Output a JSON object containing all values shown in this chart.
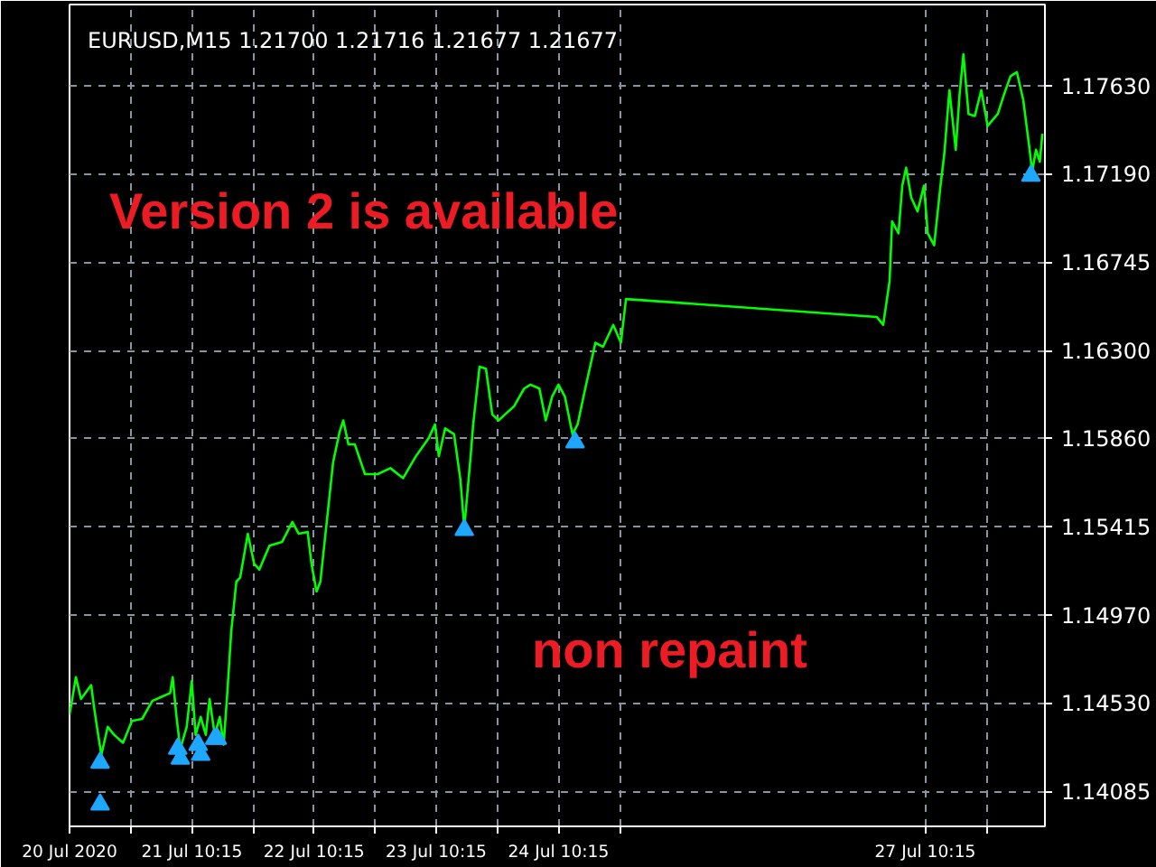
{
  "chart_data": {
    "type": "line",
    "title": "EURUSD,M15  1.21700 1.21716 1.21677 1.21677",
    "annotations": [
      "Version 2 is available",
      "non repaint"
    ],
    "xlim": [
      "2020-07-20T10:15",
      "2020-07-28T09:45"
    ],
    "ylim": [
      1.1391,
      1.1804
    ],
    "xticks": [
      {
        "value": "2020-07-20T10:15",
        "label": "20 Jul 2020"
      },
      {
        "value": "2020-07-20T22:15",
        "label": null
      },
      {
        "value": "2020-07-21T10:15",
        "label": "21 Jul 10:15"
      },
      {
        "value": "2020-07-21T22:15",
        "label": null
      },
      {
        "value": "2020-07-22T10:15",
        "label": "22 Jul 10:15"
      },
      {
        "value": "2020-07-22T22:15",
        "label": null
      },
      {
        "value": "2020-07-23T10:15",
        "label": "23 Jul 10:15"
      },
      {
        "value": "2020-07-23T22:15",
        "label": null
      },
      {
        "value": "2020-07-24T10:15",
        "label": "24 Jul 10:15"
      },
      {
        "value": "2020-07-24T22:15",
        "label": null
      },
      {
        "value": "2020-07-27T10:15",
        "label": "27 Jul 10:15"
      },
      {
        "value": "2020-07-27T22:15",
        "label": null
      }
    ],
    "yticks": [
      {
        "value": 1.14085,
        "label": "1.14085"
      },
      {
        "value": 1.1453,
        "label": "1.14530"
      },
      {
        "value": 1.1497,
        "label": "1.14970"
      },
      {
        "value": 1.15415,
        "label": "1.15415"
      },
      {
        "value": 1.1586,
        "label": "1.15860"
      },
      {
        "value": 1.163,
        "label": "1.16300"
      },
      {
        "value": 1.16745,
        "label": "1.16745"
      },
      {
        "value": 1.1719,
        "label": "1.17190"
      },
      {
        "value": 1.1763,
        "label": "1.17630"
      }
    ],
    "grid": true,
    "series": [
      {
        "color": "#00ff00",
        "x": [
          "2020-07-20T10:15",
          "2020-07-20T11:30",
          "2020-07-20T12:30",
          "2020-07-20T14:30",
          "2020-07-20T15:00",
          "2020-07-20T15:45",
          "2020-07-20T16:30",
          "2020-07-20T17:45",
          "2020-07-20T19:00",
          "2020-07-20T20:45",
          "2020-07-20T22:30",
          "2020-07-21T00:30",
          "2020-07-21T02:30",
          "2020-07-21T04:15",
          "2020-07-21T06:00",
          "2020-07-21T06:30",
          "2020-07-21T07:15",
          "2020-07-21T08:00",
          "2020-07-21T09:15",
          "2020-07-21T10:15",
          "2020-07-21T11:00",
          "2020-07-21T12:00",
          "2020-07-21T13:00",
          "2020-07-21T13:45",
          "2020-07-21T14:45",
          "2020-07-21T15:45",
          "2020-07-21T16:30",
          "2020-07-21T17:15",
          "2020-07-21T18:00",
          "2020-07-21T19:00",
          "2020-07-21T19:45",
          "2020-07-21T21:15",
          "2020-07-21T22:30",
          "2020-07-21T23:30",
          "2020-07-22T01:30",
          "2020-07-22T04:00",
          "2020-07-22T06:00",
          "2020-07-22T07:15",
          "2020-07-22T09:00",
          "2020-07-22T09:45",
          "2020-07-22T10:45",
          "2020-07-22T11:30",
          "2020-07-22T12:30",
          "2020-07-22T13:15",
          "2020-07-22T14:00",
          "2020-07-22T15:15",
          "2020-07-22T16:00",
          "2020-07-22T17:00",
          "2020-07-22T18:15",
          "2020-07-22T20:15",
          "2020-07-22T22:45",
          "2020-07-23T01:15",
          "2020-07-23T03:45",
          "2020-07-23T06:15",
          "2020-07-23T08:45",
          "2020-07-23T10:00",
          "2020-07-23T10:45",
          "2020-07-23T12:00",
          "2020-07-23T13:45",
          "2020-07-23T15:00",
          "2020-07-23T15:45",
          "2020-07-23T17:00",
          "2020-07-23T17:30",
          "2020-07-23T18:45",
          "2020-07-23T20:00",
          "2020-07-23T21:15",
          "2020-07-23T22:30",
          "2020-07-23T23:45",
          "2020-07-24T01:30",
          "2020-07-24T03:30",
          "2020-07-24T04:45",
          "2020-07-24T06:30",
          "2020-07-24T07:45",
          "2020-07-24T09:00",
          "2020-07-24T10:15",
          "2020-07-24T11:30",
          "2020-07-24T13:00",
          "2020-07-24T14:00",
          "2020-07-24T15:30",
          "2020-07-24T17:30",
          "2020-07-24T19:00",
          "2020-07-24T21:00",
          "2020-07-24T22:30",
          "2020-07-24T23:30",
          "2020-07-27T00:45",
          "2020-07-27T02:00",
          "2020-07-27T03:15",
          "2020-07-27T03:45",
          "2020-07-27T05:00",
          "2020-07-27T05:45",
          "2020-07-27T06:30",
          "2020-07-27T07:30",
          "2020-07-27T08:45",
          "2020-07-27T10:00",
          "2020-07-27T10:45",
          "2020-07-27T12:00",
          "2020-07-27T13:15",
          "2020-07-27T14:00",
          "2020-07-27T15:00",
          "2020-07-27T16:15",
          "2020-07-27T17:00",
          "2020-07-27T17:45",
          "2020-07-27T18:45",
          "2020-07-27T20:00",
          "2020-07-27T21:15",
          "2020-07-27T22:30",
          "2020-07-28T00:30",
          "2020-07-28T01:45",
          "2020-07-28T03:00",
          "2020-07-28T04:15",
          "2020-07-28T05:30",
          "2020-07-28T06:45",
          "2020-07-28T07:15",
          "2020-07-28T08:00",
          "2020-07-28T08:45",
          "2020-07-28T09:15"
        ],
        "values": [
          1.1447,
          1.1466,
          1.1455,
          1.1462,
          1.1452,
          1.1439,
          1.1427,
          1.1441,
          1.1437,
          1.1433,
          1.1444,
          1.1445,
          1.1454,
          1.1456,
          1.1458,
          1.1466,
          1.1446,
          1.143,
          1.1441,
          1.1464,
          1.1437,
          1.1446,
          1.1437,
          1.1455,
          1.1437,
          1.1446,
          1.1432,
          1.1459,
          1.1489,
          1.1514,
          1.1516,
          1.1538,
          1.1523,
          1.152,
          1.1532,
          1.1534,
          1.1544,
          1.1538,
          1.1539,
          1.1523,
          1.1509,
          1.1514,
          1.1538,
          1.1556,
          1.1574,
          1.1589,
          1.1595,
          1.1583,
          1.1583,
          1.1568,
          1.1568,
          1.1571,
          1.1566,
          1.1577,
          1.1586,
          1.1593,
          1.1577,
          1.1591,
          1.1588,
          1.1565,
          1.1541,
          1.1577,
          1.1593,
          1.1622,
          1.1621,
          1.1598,
          1.1595,
          1.1598,
          1.1602,
          1.1611,
          1.1613,
          1.1611,
          1.1595,
          1.1607,
          1.1613,
          1.1607,
          1.1588,
          1.1593,
          1.1611,
          1.1634,
          1.1632,
          1.1643,
          1.1634,
          1.1656,
          1.1647,
          1.1643,
          1.1665,
          1.1695,
          1.1689,
          1.1713,
          1.1722,
          1.1707,
          1.17,
          1.1713,
          1.1689,
          1.1683,
          1.1713,
          1.1729,
          1.1761,
          1.1731,
          1.1759,
          1.1779,
          1.1749,
          1.1748,
          1.1761,
          1.1743,
          1.1749,
          1.1759,
          1.1768,
          1.177,
          1.1756,
          1.1731,
          1.172,
          1.1731,
          1.1725,
          1.1739
        ]
      },
      {
        "type": "scatter",
        "color": "#1ea7ff",
        "marker": "triangle",
        "x": [
          "2020-07-20T16:15",
          "2020-07-20T16:15",
          "2020-07-21T07:30",
          "2020-07-21T08:00",
          "2020-07-21T11:30",
          "2020-07-21T12:00",
          "2020-07-21T14:45",
          "2020-07-21T15:15",
          "2020-07-23T15:45",
          "2020-07-24T13:30",
          "2020-07-28T07:00"
        ],
        "values": [
          1.1423,
          1.1402,
          1.143,
          1.1425,
          1.1432,
          1.1427,
          1.1435,
          1.1435,
          1.154,
          1.1584,
          1.1718
        ]
      }
    ]
  }
}
